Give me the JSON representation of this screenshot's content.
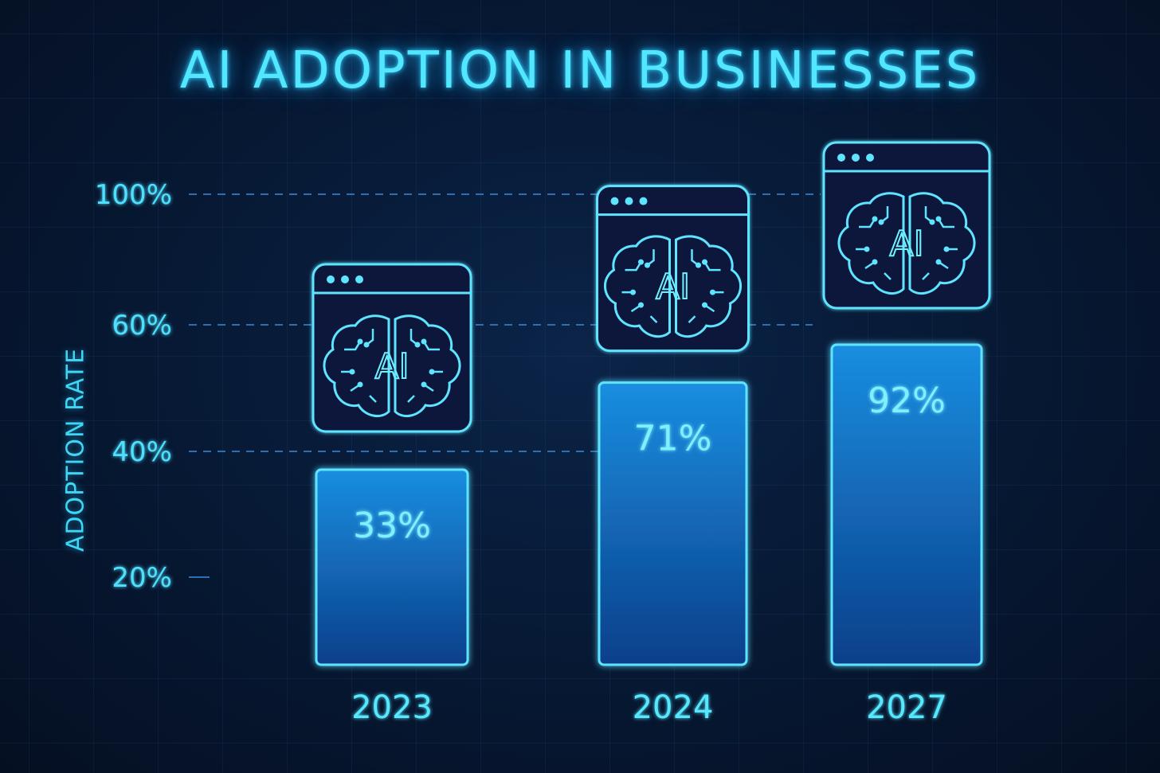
{
  "chart_data": {
    "type": "bar",
    "title": "AI ADOPTION IN BUSINESSES",
    "ylabel": "ADOPTION RATE",
    "xlabel": "",
    "categories": [
      "2023",
      "2024",
      "2027"
    ],
    "values": [
      33,
      71,
      92
    ],
    "value_labels": [
      "33%",
      "71%",
      "92%"
    ],
    "yticks": [
      {
        "value": 20,
        "label": "20%"
      },
      {
        "value": 40,
        "label": "40%"
      },
      {
        "value": 60,
        "label": "60%"
      },
      {
        "value": 100,
        "label": "100%"
      }
    ],
    "icon": "ai-brain-browser-window-icon",
    "icon_text": "AI",
    "colors": {
      "background": "#06142c",
      "accent": "#4fe0ff",
      "bar_top": "#1a8ee0",
      "bar_bottom": "#0b3f8a"
    }
  }
}
